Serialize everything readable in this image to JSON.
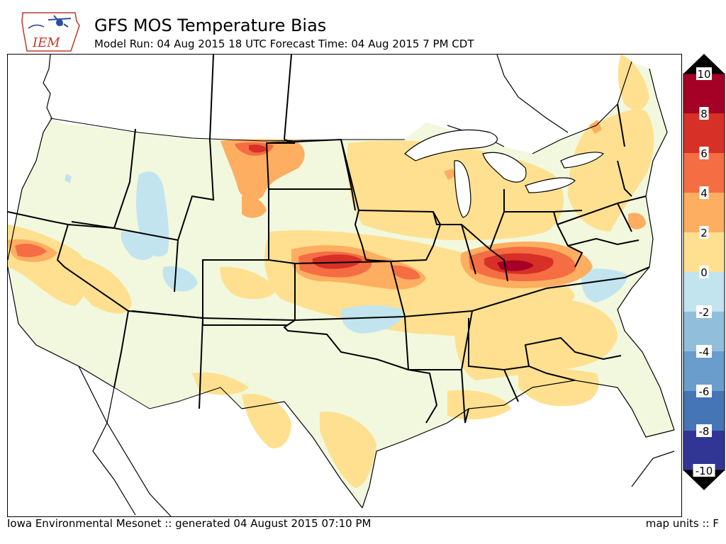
{
  "header": {
    "title": "GFS MOS Temperature Bias",
    "subtitle": "Model Run: 04 Aug 2015 18 UTC Forecast Time: 04 Aug 2015 7 PM CDT",
    "logo_text": "IEM"
  },
  "colorbar": {
    "labels": [
      "10",
      "8",
      "6",
      "4",
      "2",
      "0",
      "-2",
      "-4",
      "-6",
      "-8",
      "-10"
    ],
    "colors": [
      "#a50026",
      "#d73027",
      "#f46d43",
      "#fdae61",
      "#fee090",
      "#f1f8de",
      "#c2e4ef",
      "#91bfdb",
      "#6a9dcc",
      "#4575b4",
      "#313695"
    ]
  },
  "footer": {
    "credit": "Iowa Environmental Mesonet :: generated 04 August 2015 07:10 PM",
    "units": "map units :: F"
  },
  "map": {
    "colors": {
      "background": "#f1f8de",
      "warm2": "#fee090",
      "warm4": "#fdae61",
      "warm6": "#f46d43",
      "warm8": "#d73027",
      "warm10": "#a50026",
      "cool2": "#c2e4ef"
    }
  }
}
